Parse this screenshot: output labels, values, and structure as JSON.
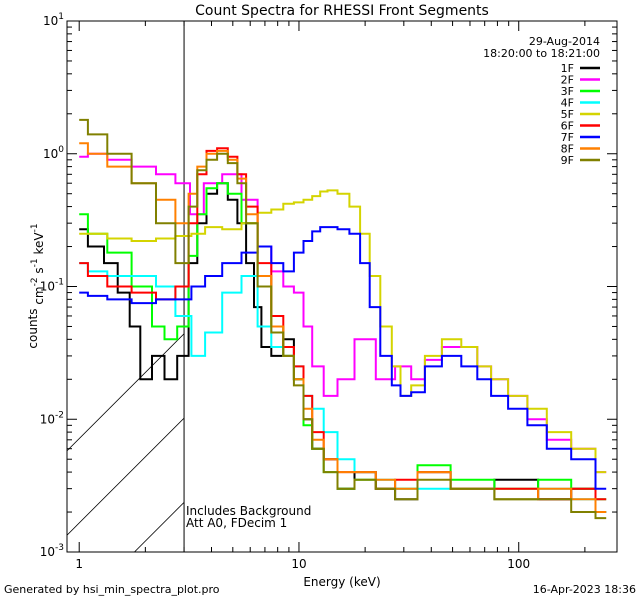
{
  "footer": {
    "generated_by": "Generated by hsi_min_spectra_plot.pro",
    "timestamp": "16-Apr-2023 18:36"
  },
  "chart_data": {
    "type": "line",
    "title": "Count Spectra for RHESSI Front Segments",
    "xlabel": "Energy (keV)",
    "ylabel": "counts cm-2 s-1 keV-1",
    "xscale": "log",
    "yscale": "log",
    "xlim": [
      0.88,
      280
    ],
    "ylim": [
      0.001,
      10
    ],
    "x_tick_labels": [
      "1",
      "10",
      "100"
    ],
    "y_tick_labels": [
      "10-3",
      "10-2",
      "10-1",
      "100",
      "101"
    ],
    "grid": false,
    "legend_position": "top-right",
    "date": "29-Aug-2014",
    "time_range": "18:20:00 to 18:21:00",
    "annotations": [
      "Includes Background",
      "Att A0, FDecim 1"
    ],
    "hatched_region_max_energy": 3,
    "series": [
      {
        "name": "1F",
        "color": "#000000",
        "x": [
          1,
          1.2,
          1.4,
          1.6,
          1.8,
          2.0,
          2.3,
          2.6,
          3.0,
          3.3,
          3.6,
          4.0,
          4.5,
          5.0,
          5.5,
          6.0,
          6.5,
          7.0,
          8.0,
          9.0,
          10.0,
          11,
          12,
          14,
          16,
          20,
          25,
          30,
          40,
          60,
          100,
          150,
          200,
          250
        ],
        "y": [
          0.27,
          0.2,
          0.15,
          0.09,
          0.05,
          0.02,
          0.03,
          0.02,
          0.03,
          0.15,
          0.3,
          0.5,
          0.6,
          0.45,
          0.3,
          0.15,
          0.07,
          0.035,
          0.03,
          0.04,
          0.02,
          0.01,
          0.006,
          0.005,
          0.003,
          0.004,
          0.003,
          0.0025,
          0.004,
          0.003,
          0.0035,
          0.0025,
          0.003,
          0.002
        ]
      },
      {
        "name": "2F",
        "color": "#ff00ff",
        "x": [
          1,
          1.2,
          1.5,
          2.0,
          2.5,
          3.0,
          3.4,
          4.0,
          5.0,
          6.0,
          7.0,
          8.0,
          9.0,
          10.0,
          11,
          12,
          14,
          16,
          20,
          25,
          30,
          35,
          40,
          50,
          60,
          70,
          80,
          100,
          120,
          150,
          200,
          250
        ],
        "y": [
          0.95,
          1.0,
          0.9,
          0.8,
          0.7,
          0.6,
          0.35,
          0.6,
          0.7,
          0.45,
          0.2,
          0.13,
          0.1,
          0.09,
          0.05,
          0.025,
          0.015,
          0.02,
          0.04,
          0.02,
          0.025,
          0.02,
          0.028,
          0.035,
          0.035,
          0.025,
          0.02,
          0.015,
          0.01,
          0.007,
          0.006,
          0.004
        ]
      },
      {
        "name": "3F",
        "color": "#00ff00",
        "x": [
          1,
          1.2,
          1.5,
          2.0,
          2.3,
          2.6,
          3.0,
          3.3,
          3.6,
          4.0,
          4.5,
          5.0,
          6.0,
          7.0,
          8.0,
          9.0,
          10.0,
          11,
          12,
          14,
          16,
          20,
          25,
          30,
          40,
          60,
          100,
          150,
          200,
          250
        ],
        "y": [
          0.35,
          0.25,
          0.18,
          0.1,
          0.05,
          0.04,
          0.05,
          0.17,
          0.35,
          0.55,
          0.6,
          0.5,
          0.3,
          0.12,
          0.05,
          0.03,
          0.02,
          0.009,
          0.006,
          0.004,
          0.003,
          0.0035,
          0.003,
          0.003,
          0.0045,
          0.0035,
          0.003,
          0.0035,
          0.003,
          0.0025
        ]
      },
      {
        "name": "4F",
        "color": "#00ffff",
        "x": [
          1,
          1.2,
          1.5,
          2.0,
          2.5,
          3.0,
          3.5,
          4.0,
          5.0,
          6.0,
          7.0,
          8.0,
          9.0,
          10.0,
          11,
          12,
          14,
          16,
          20,
          25,
          30,
          40,
          60,
          100,
          150,
          200,
          250
        ],
        "y": [
          0.15,
          0.13,
          0.12,
          0.12,
          0.1,
          0.06,
          0.03,
          0.045,
          0.09,
          0.12,
          0.05,
          0.035,
          0.03,
          0.025,
          0.015,
          0.012,
          0.008,
          0.005,
          0.004,
          0.0035,
          0.003,
          0.003,
          0.003,
          0.0025,
          0.003,
          0.0025,
          0.002
        ]
      },
      {
        "name": "5F",
        "color": "#d4d400",
        "x": [
          1,
          1.2,
          1.5,
          2.0,
          2.5,
          3.0,
          3.5,
          4.0,
          5.0,
          6.0,
          7.0,
          8.0,
          9.0,
          10.0,
          11,
          12,
          13,
          14,
          16,
          18,
          20,
          22,
          25,
          28,
          30,
          35,
          40,
          50,
          60,
          70,
          80,
          100,
          120,
          150,
          200,
          250
        ],
        "y": [
          0.25,
          0.25,
          0.23,
          0.22,
          0.23,
          0.24,
          0.25,
          0.28,
          0.27,
          0.3,
          0.36,
          0.38,
          0.42,
          0.43,
          0.45,
          0.48,
          0.52,
          0.53,
          0.5,
          0.4,
          0.25,
          0.12,
          0.05,
          0.025,
          0.015,
          0.018,
          0.03,
          0.04,
          0.035,
          0.025,
          0.02,
          0.015,
          0.012,
          0.008,
          0.006,
          0.004
        ]
      },
      {
        "name": "6F",
        "color": "#ff0000",
        "x": [
          1,
          1.2,
          1.5,
          2.0,
          2.5,
          3.0,
          3.3,
          3.6,
          4.0,
          4.5,
          5.0,
          5.5,
          6.0,
          7.0,
          8.0,
          9.0,
          10.0,
          11,
          12,
          14,
          16,
          20,
          25,
          30,
          40,
          60,
          100,
          150,
          200,
          250
        ],
        "y": [
          0.15,
          0.12,
          0.1,
          0.09,
          0.08,
          0.1,
          0.3,
          0.7,
          1.05,
          1.1,
          0.95,
          0.7,
          0.4,
          0.15,
          0.06,
          0.035,
          0.025,
          0.015,
          0.008,
          0.005,
          0.004,
          0.004,
          0.003,
          0.0035,
          0.004,
          0.003,
          0.003,
          0.0025,
          0.003,
          0.0025
        ]
      },
      {
        "name": "7F",
        "color": "#0000ff",
        "x": [
          1,
          1.2,
          1.5,
          2.0,
          2.5,
          3.0,
          3.5,
          4.0,
          5.0,
          6.0,
          7.0,
          8.0,
          9.0,
          10.0,
          11,
          12,
          13,
          14,
          16,
          18,
          20,
          22,
          25,
          28,
          30,
          35,
          40,
          50,
          60,
          70,
          80,
          100,
          120,
          150,
          200,
          250
        ],
        "y": [
          0.09,
          0.085,
          0.08,
          0.075,
          0.08,
          0.08,
          0.1,
          0.12,
          0.15,
          0.18,
          0.2,
          0.15,
          0.13,
          0.18,
          0.22,
          0.26,
          0.28,
          0.28,
          0.27,
          0.25,
          0.15,
          0.07,
          0.03,
          0.018,
          0.015,
          0.016,
          0.025,
          0.03,
          0.025,
          0.02,
          0.015,
          0.012,
          0.009,
          0.006,
          0.005,
          0.003
        ]
      },
      {
        "name": "8F",
        "color": "#ff8000",
        "x": [
          1,
          1.2,
          1.5,
          2.0,
          2.5,
          3.0,
          3.3,
          3.6,
          4.0,
          4.5,
          5.0,
          5.5,
          6.0,
          7.0,
          8.0,
          9.0,
          10.0,
          11,
          12,
          14,
          16,
          20,
          25,
          30,
          40,
          60,
          100,
          150,
          200,
          250
        ],
        "y": [
          1.2,
          1.0,
          0.8,
          0.6,
          0.45,
          0.3,
          0.5,
          0.8,
          1.0,
          1.05,
          0.9,
          0.65,
          0.35,
          0.12,
          0.05,
          0.03,
          0.02,
          0.012,
          0.007,
          0.005,
          0.004,
          0.004,
          0.0035,
          0.003,
          0.004,
          0.003,
          0.0025,
          0.003,
          0.0025,
          0.002
        ]
      },
      {
        "name": "9F",
        "color": "#808000",
        "x": [
          1,
          1.2,
          1.5,
          2.0,
          2.5,
          3.0,
          3.3,
          3.6,
          4.0,
          4.5,
          5.0,
          5.5,
          6.0,
          7.0,
          8.0,
          9.0,
          10.0,
          11,
          12,
          14,
          16,
          20,
          25,
          30,
          40,
          60,
          100,
          150,
          200,
          250
        ],
        "y": [
          1.8,
          1.4,
          1.0,
          0.6,
          0.3,
          0.15,
          0.4,
          0.75,
          0.9,
          1.0,
          0.85,
          0.6,
          0.3,
          0.1,
          0.045,
          0.03,
          0.018,
          0.01,
          0.006,
          0.004,
          0.003,
          0.0035,
          0.003,
          0.0025,
          0.0035,
          0.003,
          0.0025,
          0.0025,
          0.002,
          0.0018
        ]
      }
    ]
  }
}
